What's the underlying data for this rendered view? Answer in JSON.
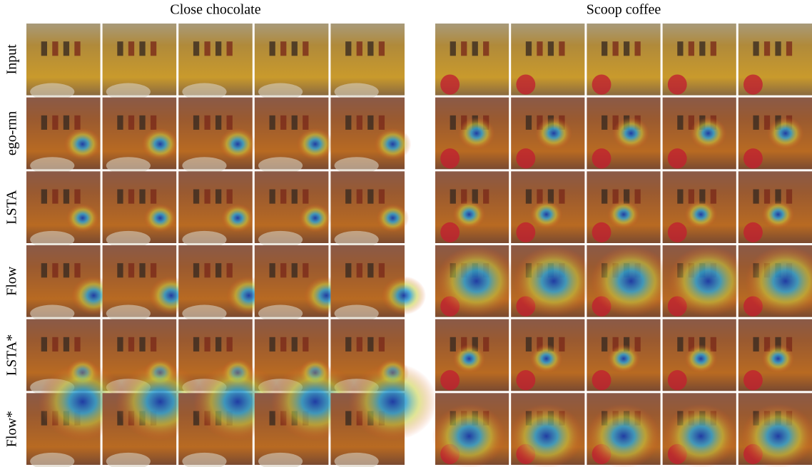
{
  "panels": [
    {
      "title": "Close chocolate"
    },
    {
      "title": "Scoop coffee"
    }
  ],
  "rows": [
    "Input",
    "ego-rnn",
    "LSTA",
    "Flow",
    "LSTA*",
    "Flow*"
  ]
}
